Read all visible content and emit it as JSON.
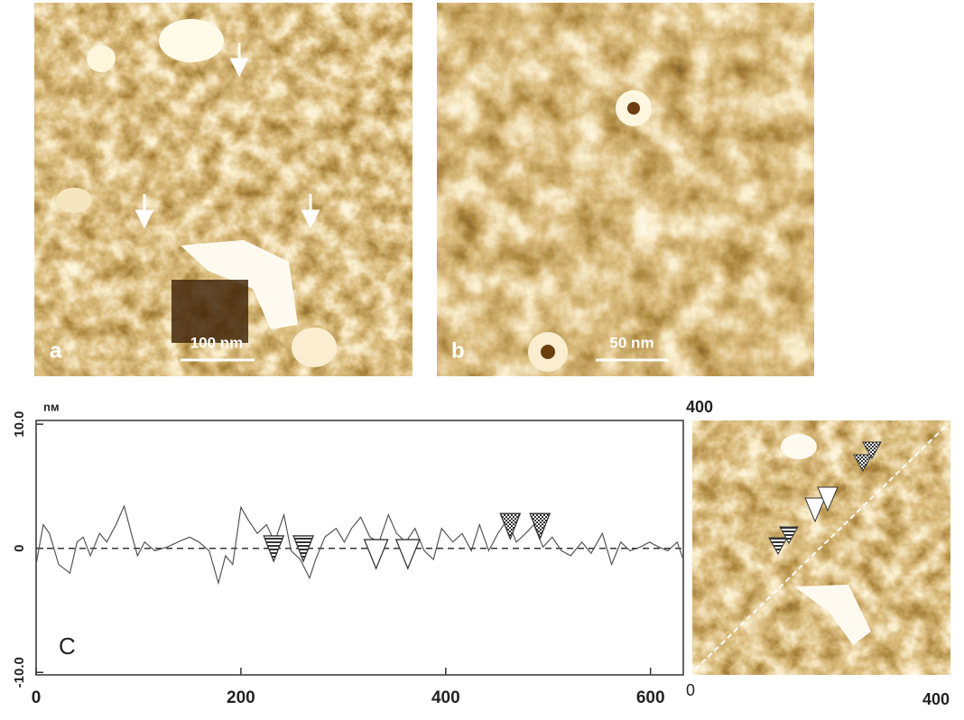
{
  "panels": [
    {
      "label": "a",
      "scale_bar": "100 nm"
    },
    {
      "label": "b",
      "scale_bar": "50 nm"
    }
  ],
  "inset": {
    "top_label": "400",
    "x_start": "0",
    "x_end": "400"
  },
  "chart_data": {
    "type": "line",
    "panel_label": "C",
    "y_unit": "nм",
    "color": "#555555",
    "x": [
      0,
      7,
      13,
      22,
      33,
      40,
      46,
      53,
      62,
      69,
      78,
      86,
      93,
      99,
      106,
      116,
      128,
      141,
      150,
      159,
      169,
      178,
      185,
      192,
      200,
      207,
      216,
      225,
      233,
      242,
      249,
      258,
      267,
      273,
      282,
      293,
      301,
      308,
      317,
      326,
      335,
      344,
      352,
      361,
      370,
      379,
      388,
      396,
      407,
      416,
      425,
      433,
      442,
      451,
      460,
      469,
      478,
      486,
      495,
      504,
      513,
      522,
      533,
      542,
      553,
      562,
      571,
      580,
      590,
      599,
      608,
      617,
      626,
      632
    ],
    "values": [
      -1.3,
      1.9,
      1.2,
      -1.3,
      -2.0,
      0.5,
      0.9,
      -0.6,
      1.2,
      0.5,
      1.9,
      3.4,
      1.2,
      -0.6,
      0.5,
      -0.2,
      0.1,
      0.6,
      0.9,
      0.5,
      -0.2,
      -2.8,
      -0.6,
      -1.3,
      3.3,
      2.3,
      1.2,
      1.9,
      0.5,
      2.7,
      -0.2,
      -0.9,
      -2.4,
      -0.9,
      0.9,
      1.6,
      0.5,
      1.6,
      2.5,
      0.9,
      0.5,
      2.7,
      1.2,
      0.5,
      1.6,
      -0.2,
      -0.9,
      1.6,
      0.5,
      1.2,
      -0.2,
      1.9,
      -0.2,
      1.2,
      2.3,
      0.5,
      1.2,
      1.9,
      0.1,
      0.9,
      -0.2,
      -0.6,
      0.5,
      -0.4,
      1.2,
      -1.3,
      0.5,
      -0.2,
      0.1,
      0.5,
      0.1,
      -0.2,
      0.5,
      -0.9
    ],
    "xlim": [
      0,
      632
    ],
    "ylim": [
      -10.2,
      10.3
    ],
    "xticks": [
      0,
      200,
      400,
      600
    ],
    "yticks": [
      {
        "value": 10,
        "label": "10.0"
      },
      0,
      {
        "value": -10,
        "label": "-10.0"
      }
    ],
    "markers": [
      {
        "x": 232,
        "y": 1.0,
        "style": "striped"
      },
      {
        "x": 261,
        "y": 1.0,
        "style": "striped"
      },
      {
        "x": 332,
        "y": 0.7,
        "style": "open"
      },
      {
        "x": 363,
        "y": 0.7,
        "style": "open"
      },
      {
        "x": 463,
        "y": 2.8,
        "style": "checkered"
      },
      {
        "x": 492,
        "y": 2.8,
        "style": "checkered"
      }
    ]
  }
}
